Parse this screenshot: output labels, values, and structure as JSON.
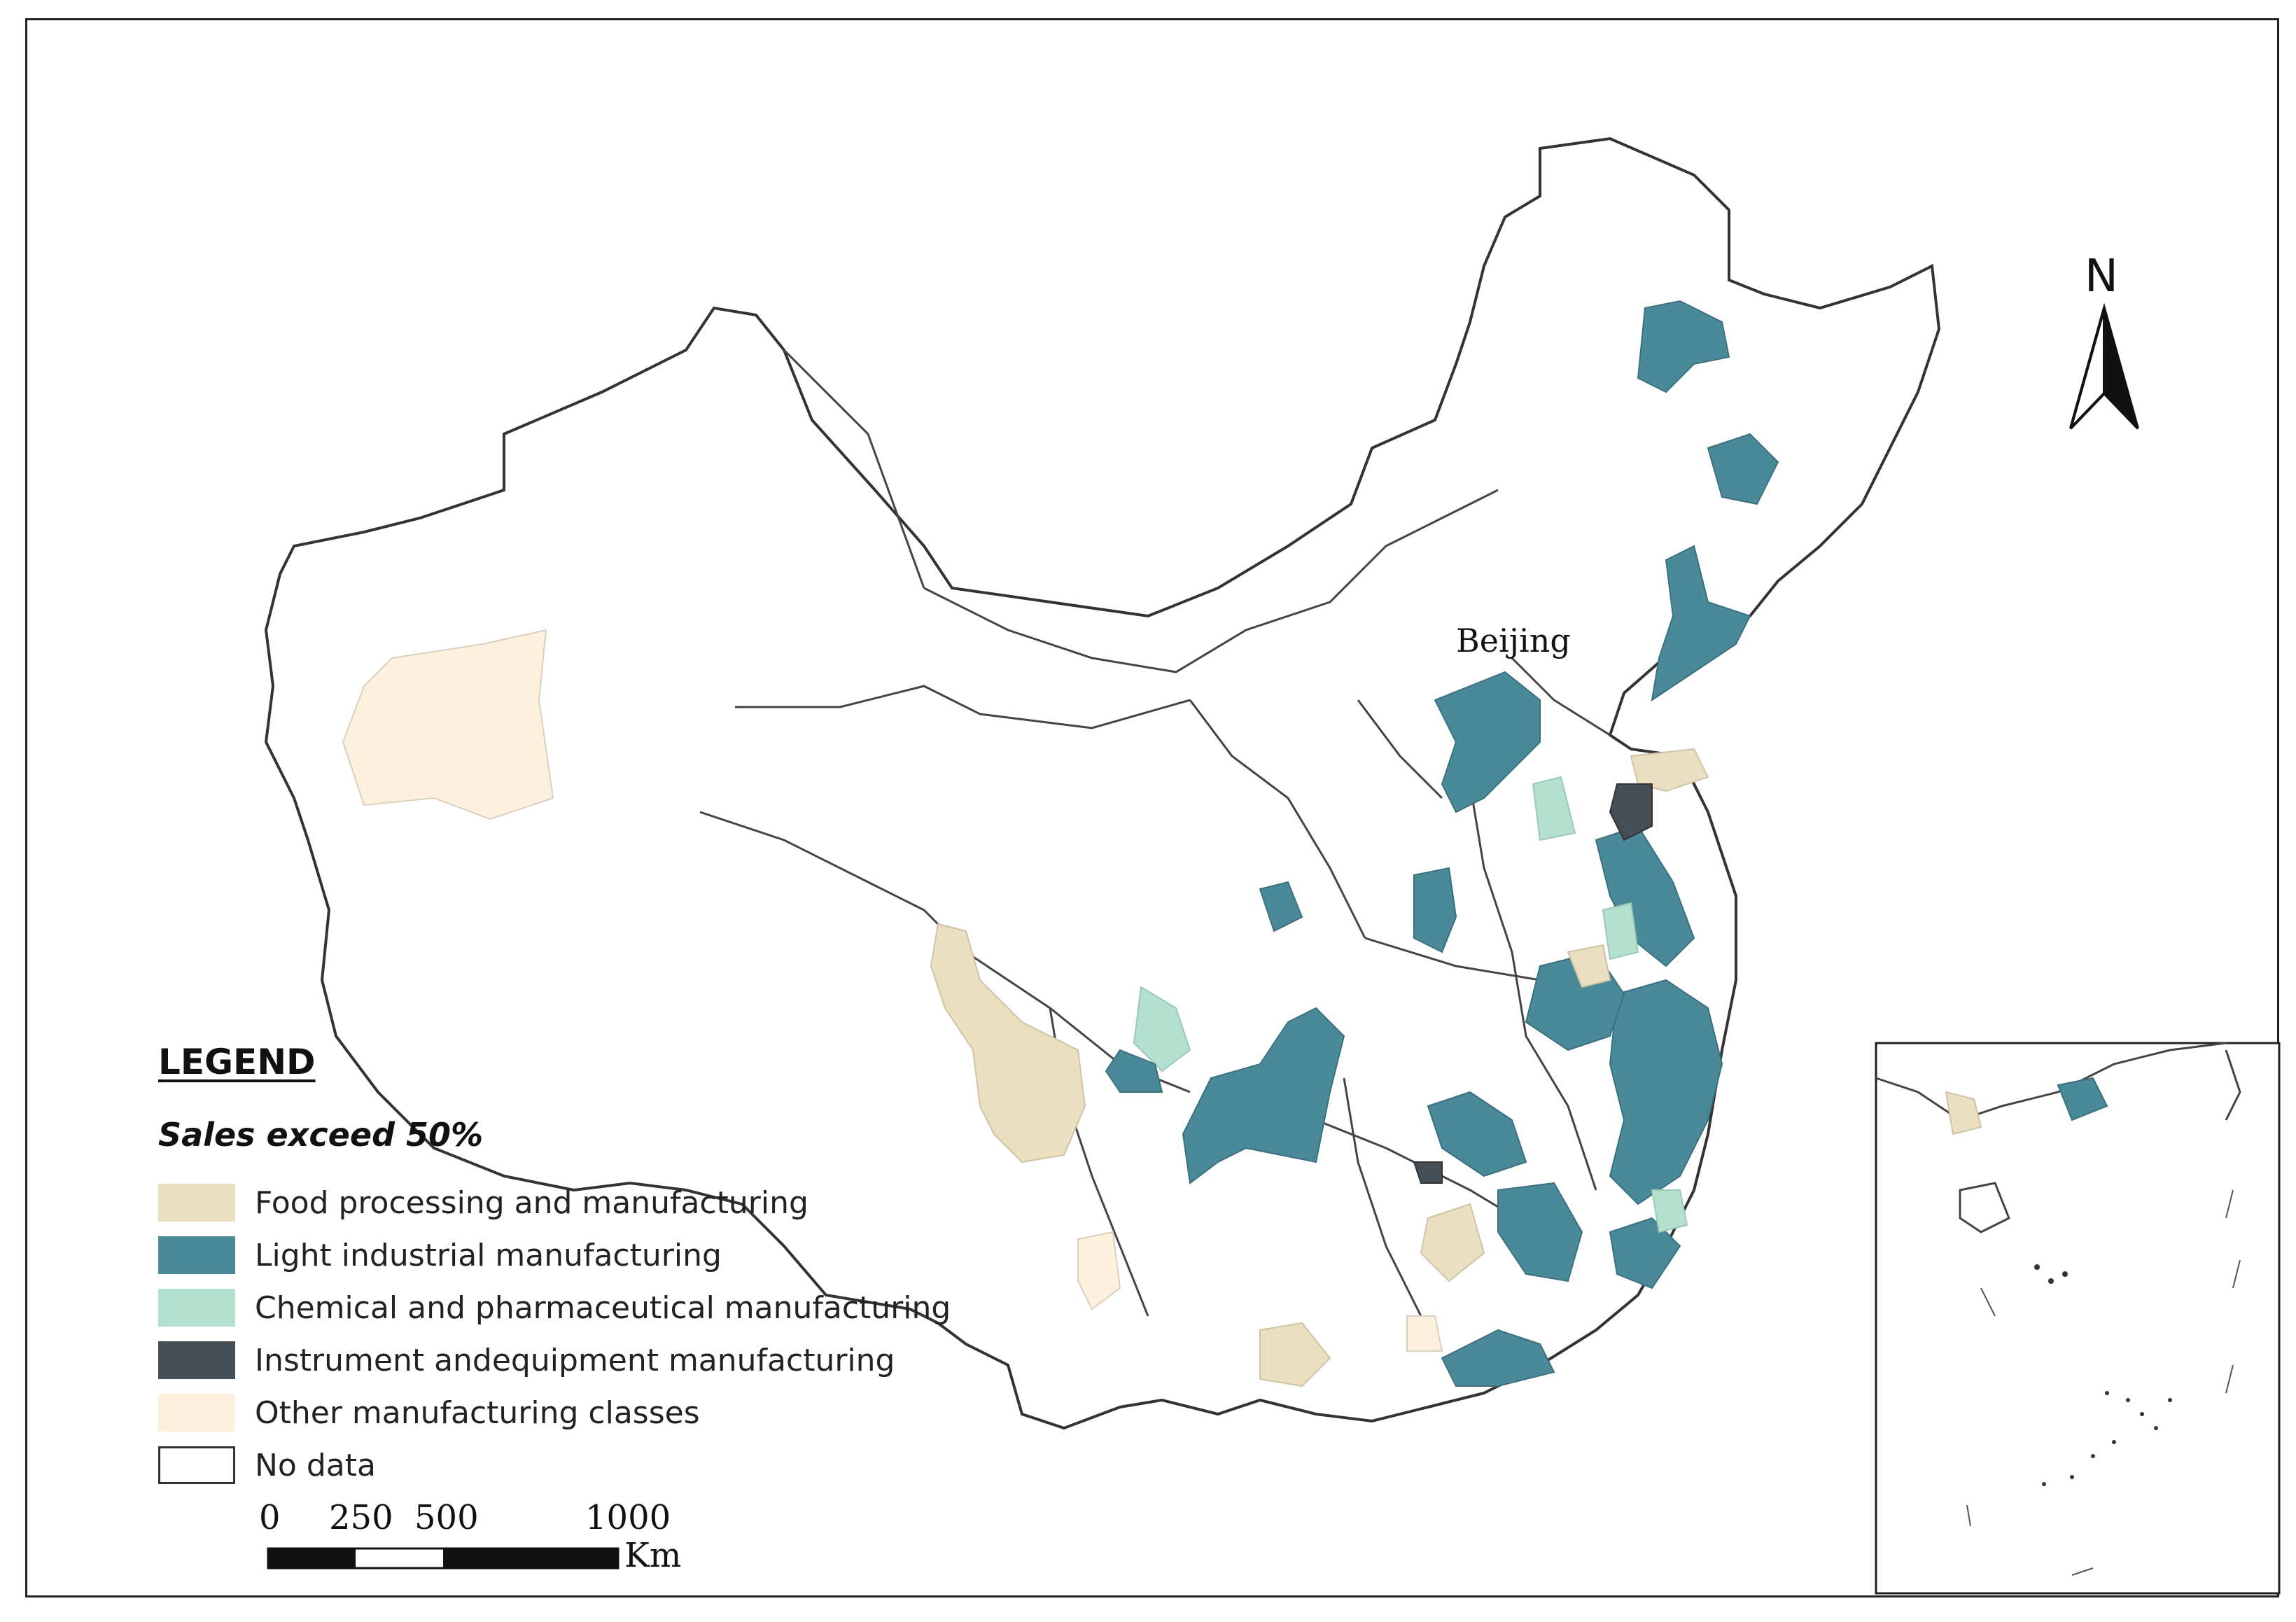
{
  "legend": {
    "title": "LEGEND",
    "subtitle": "Sales exceed 50%",
    "items": [
      {
        "label": "Food processing and manufacturing",
        "color": "#ebdfc2"
      },
      {
        "label": "Light industrial manufacturing",
        "color": "#4a8a98"
      },
      {
        "label": "Chemical and pharmaceutical manufacturing",
        "color": "#b4e0d0"
      },
      {
        "label": "Instrument andequipment manufacturing",
        "color": "#464f56"
      },
      {
        "label": "Other manufacturing classes",
        "color": "#fdf0dc"
      },
      {
        "label": "No data",
        "color": "#ffffff"
      }
    ]
  },
  "scale_bar": {
    "ticks": [
      "0",
      "250",
      "500",
      "1000"
    ],
    "unit": "Km"
  },
  "north_arrow": {
    "letter": "N",
    "icon": "north-arrow-icon"
  },
  "places": {
    "capital": "Beijing"
  },
  "colors": {
    "boundary": "#333333",
    "internal_boundary": "#dddddd",
    "frame": "#222222"
  }
}
